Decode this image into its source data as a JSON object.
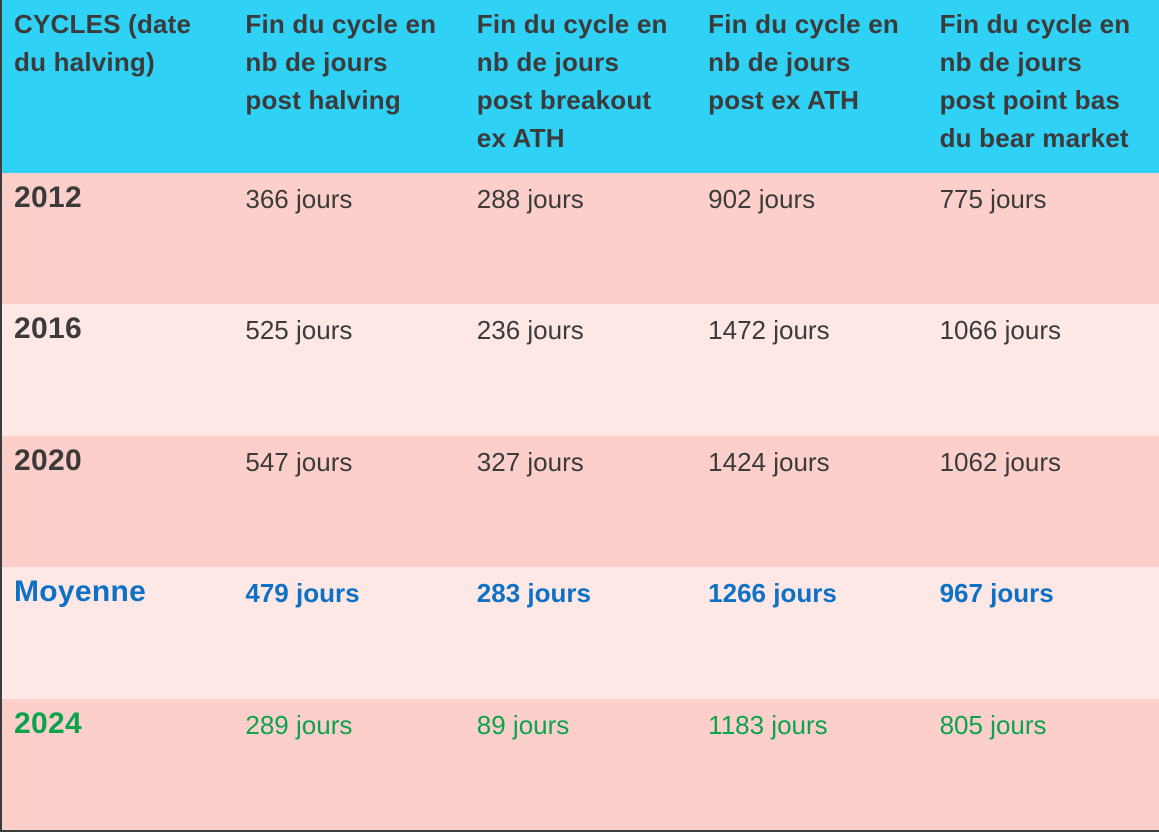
{
  "table": {
    "columns": [
      "CYCLES (date du halving)",
      "Fin du cycle en nb de jours post halving",
      "Fin du cycle en nb de jours post breakout ex ATH",
      "Fin du cycle en nb de jours post ex ATH",
      "Fin du cycle en nb de jours post point bas du bear market"
    ],
    "rows": [
      {
        "label": "2012",
        "values": [
          "366 jours",
          "288 jours",
          "902 jours",
          "775 jours"
        ]
      },
      {
        "label": "2016",
        "values": [
          "525 jours",
          "236 jours",
          "1472 jours",
          "1066 jours"
        ]
      },
      {
        "label": "2020",
        "values": [
          "547 jours",
          "327 jours",
          "1424 jours",
          "1062 jours"
        ]
      },
      {
        "label": "Moyenne",
        "values": [
          "479 jours",
          "283 jours",
          "1266 jours",
          "967 jours"
        ]
      },
      {
        "label": "2024",
        "values": [
          "289 jours",
          "89 jours",
          "1183 jours",
          "805 jours"
        ]
      }
    ]
  },
  "colors": {
    "header_bg": "#2fd2f5",
    "row_dark_bg": "#fdcfcb",
    "row_light_bg": "#fde8e5",
    "text_dark": "#3b3b3b",
    "moyenne_text": "#0e71c6",
    "row_2024_text": "#0ba350",
    "border": "#3c3c3c"
  },
  "chart_data": {
    "type": "table",
    "title": "CYCLES (date du halving)",
    "columns": [
      "CYCLES (date du halving)",
      "Fin du cycle en nb de jours post halving",
      "Fin du cycle en nb de jours post breakout ex ATH",
      "Fin du cycle en nb de jours post ex ATH",
      "Fin du cycle en nb de jours post point bas du bear market"
    ],
    "rows": [
      [
        "2012",
        "366 jours",
        "288 jours",
        "902 jours",
        "775 jours"
      ],
      [
        "2016",
        "525 jours",
        "236 jours",
        "1472 jours",
        "1066 jours"
      ],
      [
        "2020",
        "547 jours",
        "327 jours",
        "1424 jours",
        "1062 jours"
      ],
      [
        "Moyenne",
        "479 jours",
        "283 jours",
        "1266 jours",
        "967 jours"
      ],
      [
        "2024",
        "289 jours",
        "89 jours",
        "1183 jours",
        "805 jours"
      ]
    ],
    "values_days": {
      "post_halving": {
        "2012": 366,
        "2016": 525,
        "2020": 547,
        "moyenne": 479,
        "2024": 289
      },
      "post_breakout_ex_ath": {
        "2012": 288,
        "2016": 236,
        "2020": 327,
        "moyenne": 283,
        "2024": 89
      },
      "post_ex_ath": {
        "2012": 902,
        "2016": 1472,
        "2020": 1424,
        "moyenne": 1266,
        "2024": 1183
      },
      "post_bear_market_bottom": {
        "2012": 775,
        "2016": 1066,
        "2020": 1062,
        "moyenne": 967,
        "2024": 805
      }
    }
  }
}
